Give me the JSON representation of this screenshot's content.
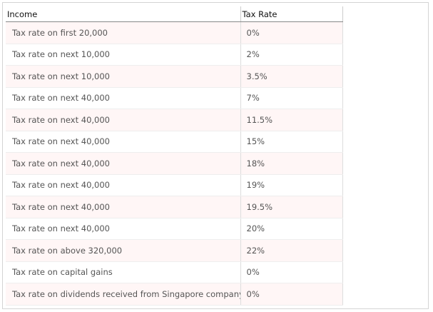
{
  "table": {
    "header": [
      "Income",
      "Tax Rate"
    ],
    "rows": [
      [
        "Tax rate on first 20,000",
        "0%"
      ],
      [
        "Tax rate on next 10,000",
        "2%"
      ],
      [
        "Tax rate on next 10,000",
        "3.5%"
      ],
      [
        "Tax rate on next 40,000",
        "7%"
      ],
      [
        "Tax rate on next 40,000",
        "11.5%"
      ],
      [
        "Tax rate on next 40,000",
        "15%"
      ],
      [
        "Tax rate on next 40,000",
        "18%"
      ],
      [
        "Tax rate on next 40,000",
        "19%"
      ],
      [
        "Tax rate on next 40,000",
        "19.5%"
      ],
      [
        "Tax rate on next 40,000",
        "20%"
      ],
      [
        "Tax rate on above 320,000",
        "22%"
      ],
      [
        "Tax rate on capital gains",
        "0%"
      ],
      [
        "Tax rate on dividends received from Singapore company",
        "0%"
      ]
    ]
  }
}
